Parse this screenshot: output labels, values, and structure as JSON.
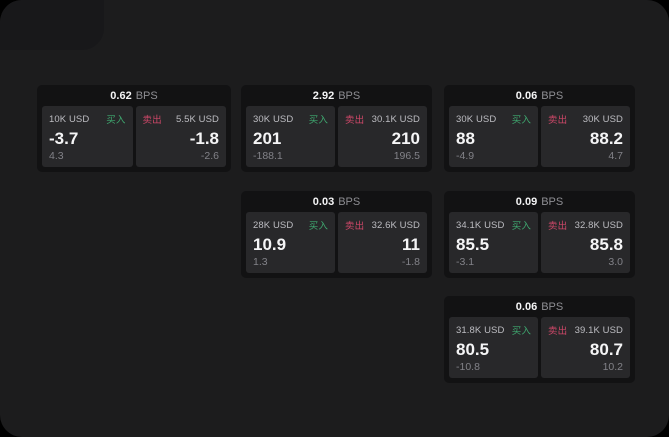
{
  "theme": {
    "page-bg": "#000000",
    "window-bg": "#1c1c1d",
    "corner-bg": "#18181a",
    "card-bg": "#121213",
    "panel-bg": "#28282a",
    "buy-green": "#3fa970",
    "sell-red": "#cd4768",
    "text-primary": "#f5f5f6",
    "text-muted": "#828288",
    "text-label": "#bdbdc2",
    "text-unit": "#8e8e93"
  },
  "cards": [
    {
      "bps_value": "0.62",
      "unit": "BPS",
      "buy": {
        "amount": "10K USD",
        "label": "买入",
        "value": "-3.7",
        "sub": "4.3"
      },
      "sell": {
        "label": "卖出",
        "amount": "5.5K USD",
        "value": "-1.8",
        "sub": "-2.6"
      }
    },
    {
      "bps_value": "2.92",
      "unit": "BPS",
      "buy": {
        "amount": "30K USD",
        "label": "买入",
        "value": "201",
        "sub": "-188.1"
      },
      "sell": {
        "label": "卖出",
        "amount": "30.1K USD",
        "value": "210",
        "sub": "196.5"
      }
    },
    {
      "bps_value": "0.06",
      "unit": "BPS",
      "buy": {
        "amount": "30K USD",
        "label": "买入",
        "value": "88",
        "sub": "-4.9"
      },
      "sell": {
        "label": "卖出",
        "amount": "30K USD",
        "value": "88.2",
        "sub": "4.7"
      }
    },
    {
      "bps_value": "0.03",
      "unit": "BPS",
      "buy": {
        "amount": "28K USD",
        "label": "买入",
        "value": "10.9",
        "sub": "1.3"
      },
      "sell": {
        "label": "卖出",
        "amount": "32.6K USD",
        "value": "11",
        "sub": "-1.8"
      }
    },
    {
      "bps_value": "0.09",
      "unit": "BPS",
      "buy": {
        "amount": "34.1K USD",
        "label": "买入",
        "value": "85.5",
        "sub": "-3.1"
      },
      "sell": {
        "label": "卖出",
        "amount": "32.8K USD",
        "value": "85.8",
        "sub": "3.0"
      }
    },
    {
      "bps_value": "0.06",
      "unit": "BPS",
      "buy": {
        "amount": "31.8K USD",
        "label": "买入",
        "value": "80.5",
        "sub": "-10.8"
      },
      "sell": {
        "label": "卖出",
        "amount": "39.1K USD",
        "value": "80.7",
        "sub": "10.2"
      }
    }
  ]
}
